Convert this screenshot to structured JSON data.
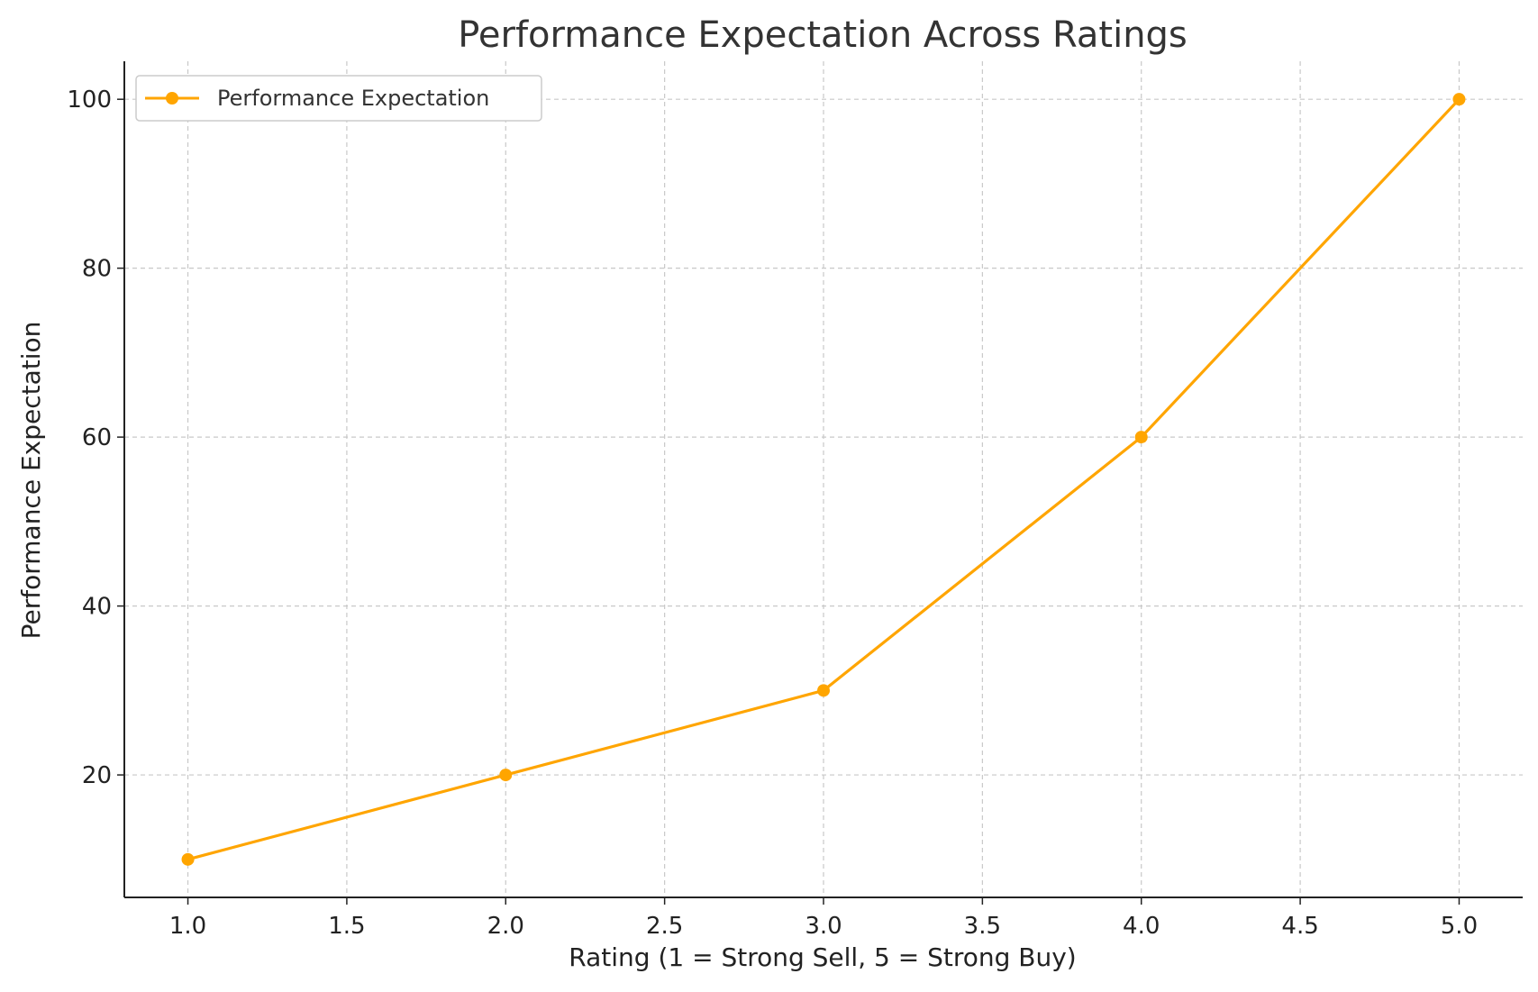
{
  "chart_data": {
    "type": "line",
    "title": "Performance Expectation Across Ratings",
    "xlabel": "Rating (1 = Strong Sell, 5 = Strong Buy)",
    "ylabel": "Performance Expectation",
    "x": [
      1,
      2,
      3,
      4,
      5
    ],
    "series": [
      {
        "name": "Performance Expectation",
        "values": [
          10,
          20,
          30,
          60,
          100
        ],
        "color": "#FFA500",
        "marker": "circle"
      }
    ],
    "xlim": [
      0.8,
      5.2
    ],
    "ylim": [
      5.5,
      104.5
    ],
    "xticks": [
      1.0,
      1.5,
      2.0,
      2.5,
      3.0,
      3.5,
      4.0,
      4.5,
      5.0
    ],
    "xtick_labels": [
      "1.0",
      "1.5",
      "2.0",
      "2.5",
      "3.0",
      "3.5",
      "4.0",
      "4.5",
      "5.0"
    ],
    "yticks": [
      20,
      40,
      60,
      80,
      100
    ],
    "ytick_labels": [
      "20",
      "40",
      "60",
      "80",
      "100"
    ],
    "grid": true,
    "grid_style": "dashed",
    "legend_position": "top-left"
  }
}
